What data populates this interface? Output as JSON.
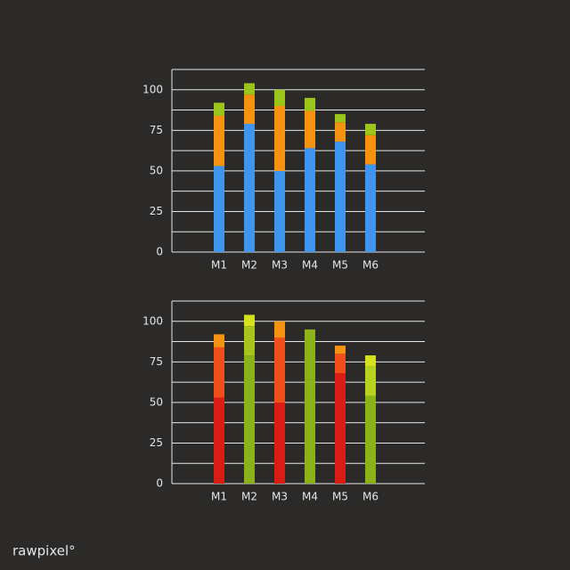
{
  "chart_data": [
    {
      "type": "stacked_bar",
      "categories": [
        "M1",
        "M2",
        "M3",
        "M4",
        "M5",
        "M6"
      ],
      "series": [
        {
          "color": "#3d95f0",
          "values": [
            53,
            79,
            50,
            64,
            68,
            54
          ]
        },
        {
          "color": "#f5920f",
          "values": [
            31,
            18,
            40,
            23,
            12,
            18
          ]
        },
        {
          "color": "#9bc51b",
          "values": [
            8,
            7,
            10,
            8,
            5,
            7
          ]
        }
      ],
      "ylim": [
        0,
        112.5
      ],
      "yticks": [
        0,
        25,
        50,
        75,
        100
      ],
      "grid_lines": [
        0,
        12.5,
        25,
        37.5,
        50,
        62.5,
        75,
        87.5,
        100,
        112.5
      ]
    },
    {
      "type": "stacked_bar",
      "categories": [
        "M1",
        "M2",
        "M3",
        "M4",
        "M5",
        "M6"
      ],
      "series": [
        {
          "colors": [
            "#d91d14",
            "#8cb21a",
            "#d91d14",
            "#8cb21a",
            "#d91d14",
            "#8cb21a"
          ],
          "values": [
            53,
            79,
            50,
            64,
            68,
            54
          ]
        },
        {
          "colors": [
            "#f24e1a",
            "#a6c41b",
            "#f24e1a",
            "#8cb21a",
            "#f24e1a",
            "#b7d21c"
          ],
          "values": [
            31,
            18,
            40,
            23,
            12,
            18
          ]
        },
        {
          "colors": [
            "#f5920f",
            "#d3e21d",
            "#f5920f",
            "#8cb21a",
            "#f5920f",
            "#d3e21d"
          ],
          "values": [
            8,
            7,
            10,
            8,
            5,
            7
          ]
        }
      ],
      "ylim": [
        0,
        112.5
      ],
      "yticks": [
        0,
        25,
        50,
        75,
        100
      ],
      "grid_lines": [
        0,
        12.5,
        25,
        37.5,
        50,
        62.5,
        75,
        87.5,
        100,
        112.5
      ]
    }
  ],
  "watermark": "rawpixel°"
}
